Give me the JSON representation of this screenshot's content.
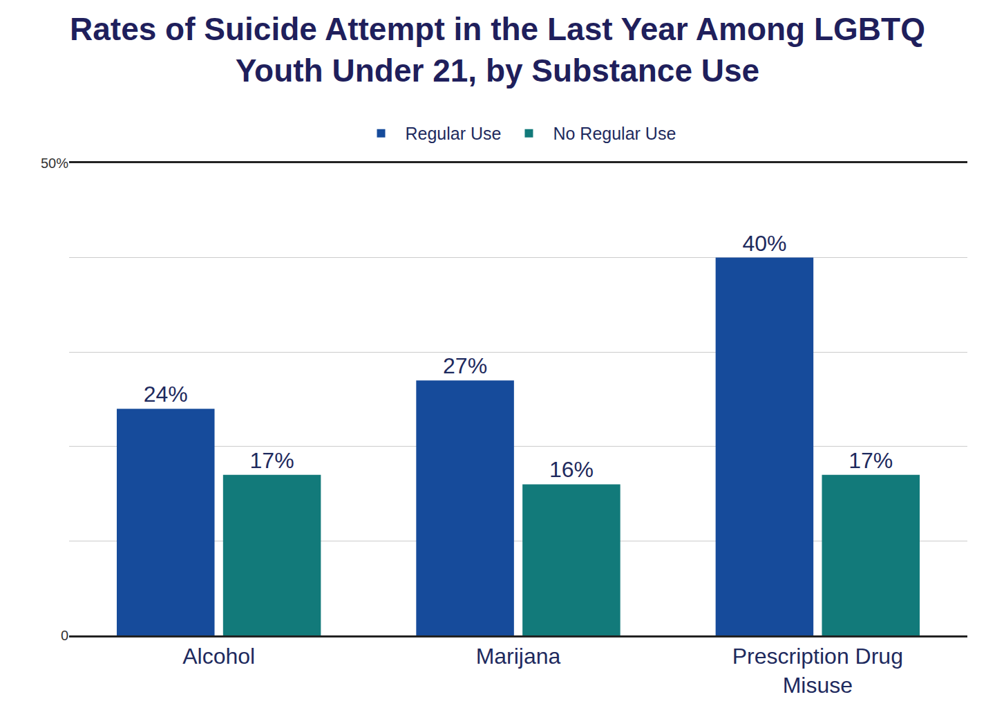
{
  "chart_data": {
    "type": "bar",
    "title": "Rates of Suicide Attempt in the Last Year Among LGBTQ Youth Under 21, by Substance Use",
    "categories": [
      "Alcohol",
      "Marijana",
      "Prescription Drug Misuse"
    ],
    "series": [
      {
        "name": "Regular Use",
        "color": "#164b9b",
        "values": [
          24,
          27,
          40
        ],
        "value_labels": [
          "24%",
          "27%",
          "40%"
        ]
      },
      {
        "name": "No Regular Use",
        "color": "#127a7a",
        "values": [
          17,
          16,
          17
        ],
        "value_labels": [
          "17%",
          "16%",
          "17%"
        ]
      }
    ],
    "ylim": [
      0,
      50
    ],
    "yticks": [
      0,
      {
        "value": 50,
        "label": "50%"
      }
    ],
    "grid": true,
    "legend": "top",
    "data_labels": true
  }
}
